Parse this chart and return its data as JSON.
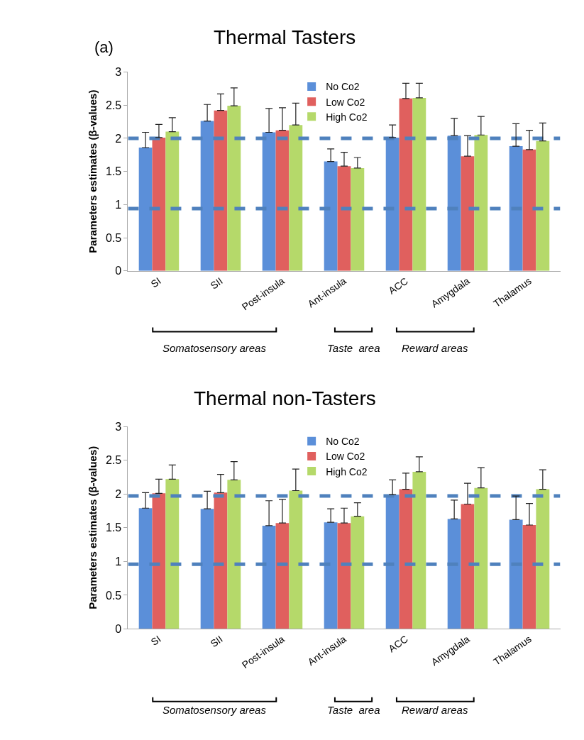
{
  "chart_data": [
    {
      "type": "bar",
      "title": "Thermal Tasters",
      "ylabel": "Parameters estimates (β-values)",
      "categories": [
        "SI",
        "SII",
        "Post-insula",
        "Ant-insula",
        "ACC",
        "Amygdala",
        "Thalamus"
      ],
      "series": [
        {
          "name": "No Co2",
          "color": "#5b8fd9",
          "values": [
            1.86,
            2.26,
            2.09,
            1.65,
            2.01,
            2.04,
            1.88
          ],
          "errors": [
            [
              1.86,
              2.09
            ],
            [
              2.26,
              2.51
            ],
            [
              2.09,
              2.45
            ],
            [
              1.65,
              1.84
            ],
            [
              2.01,
              2.2
            ],
            [
              2.04,
              2.3
            ],
            [
              1.88,
              2.22
            ]
          ]
        },
        {
          "name": "Low Co2",
          "color": "#e0605e",
          "values": [
            2.01,
            2.42,
            2.12,
            1.58,
            2.6,
            1.73,
            1.83
          ],
          "errors": [
            [
              2.01,
              2.21
            ],
            [
              2.42,
              2.67
            ],
            [
              2.12,
              2.46
            ],
            [
              1.58,
              1.79
            ],
            [
              2.6,
              2.83
            ],
            [
              1.73,
              2.04
            ],
            [
              1.83,
              2.12
            ]
          ]
        },
        {
          "name": "High Co2",
          "color": "#b5d96a",
          "values": [
            2.1,
            2.49,
            2.2,
            1.55,
            2.61,
            2.05,
            1.96
          ],
          "errors": [
            [
              2.1,
              2.31
            ],
            [
              2.49,
              2.76
            ],
            [
              2.2,
              2.53
            ],
            [
              1.55,
              1.71
            ],
            [
              2.61,
              2.83
            ],
            [
              2.05,
              2.33
            ],
            [
              1.96,
              2.23
            ]
          ]
        }
      ],
      "ylim": [
        0,
        3
      ],
      "yticks": [
        0,
        0.5,
        1,
        1.5,
        2,
        2.5,
        3
      ],
      "legend": "top",
      "ref_lines": [
        {
          "axis": "y",
          "value": 2.0,
          "color": "#4f81bd",
          "line_style": "dashed"
        },
        {
          "axis": "y",
          "value": 0.94,
          "color": "#4f81bd",
          "line_style": "dashed"
        }
      ],
      "annotations": [
        "(a)",
        "Somatosensory areas",
        "Taste  area",
        "Reward areas"
      ]
    },
    {
      "type": "bar",
      "title": "Thermal non-Tasters",
      "ylabel": "Parameters estimates (β-values)",
      "categories": [
        "SI",
        "SII",
        "Post-insula",
        "Ant-insula",
        "ACC",
        "Amygdala",
        "Thalamus"
      ],
      "series": [
        {
          "name": "No Co2",
          "color": "#5b8fd9",
          "values": [
            1.79,
            1.78,
            1.53,
            1.58,
            1.99,
            1.63,
            1.62
          ],
          "errors": [
            [
              1.79,
              2.02
            ],
            [
              1.78,
              2.04
            ],
            [
              1.53,
              1.9
            ],
            [
              1.58,
              1.78
            ],
            [
              1.99,
              2.21
            ],
            [
              1.63,
              1.91
            ],
            [
              1.62,
              1.97
            ]
          ]
        },
        {
          "name": "Low Co2",
          "color": "#e0605e",
          "values": [
            2.01,
            2.02,
            1.57,
            1.57,
            2.07,
            1.85,
            1.54
          ],
          "errors": [
            [
              2.01,
              2.22
            ],
            [
              2.02,
              2.29
            ],
            [
              1.57,
              1.92
            ],
            [
              1.57,
              1.79
            ],
            [
              2.07,
              2.31
            ],
            [
              1.85,
              2.16
            ],
            [
              1.54,
              1.86
            ]
          ]
        },
        {
          "name": "High Co2",
          "color": "#b5d96a",
          "values": [
            2.22,
            2.21,
            2.05,
            1.67,
            2.33,
            2.09,
            2.07
          ],
          "errors": [
            [
              2.22,
              2.43
            ],
            [
              2.21,
              2.48
            ],
            [
              2.05,
              2.37
            ],
            [
              1.67,
              1.87
            ],
            [
              2.33,
              2.55
            ],
            [
              2.09,
              2.39
            ],
            [
              2.07,
              2.36
            ]
          ]
        }
      ],
      "ylim": [
        0,
        3
      ],
      "yticks": [
        0,
        0.5,
        1,
        1.5,
        2,
        2.5,
        3
      ],
      "legend": "top",
      "ref_lines": [
        {
          "axis": "y",
          "value": 1.97,
          "color": "#4f81bd",
          "line_style": "dashed"
        },
        {
          "axis": "y",
          "value": 0.96,
          "color": "#4f81bd",
          "line_style": "dashed"
        }
      ],
      "annotations": [
        "Somatosensory areas",
        "Taste  area",
        "Reward areas"
      ]
    }
  ]
}
